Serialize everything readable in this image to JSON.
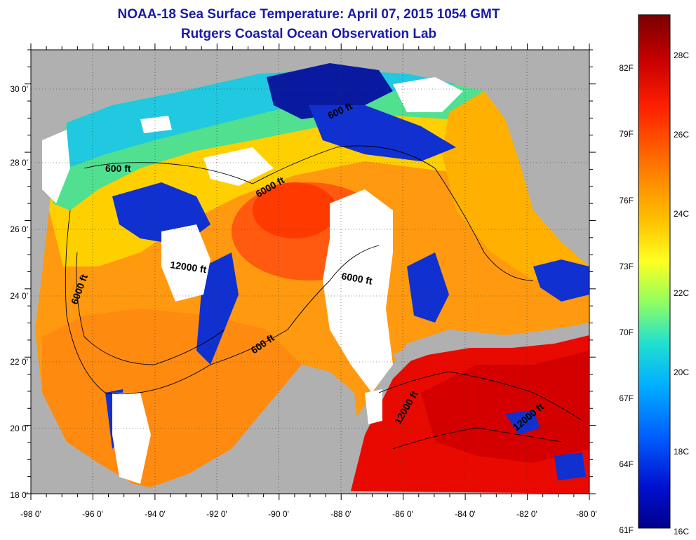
{
  "title": {
    "line1": "NOAA-18 Sea Surface Temperature:  April 07, 2015 1054 GMT",
    "line2": "Rutgers Coastal Ocean Observation Lab"
  },
  "map": {
    "region": "Gulf of Mexico",
    "lon_range": [
      -98,
      -80
    ],
    "lat_range": [
      18,
      31
    ],
    "x_tick_labels": [
      "-98 0'",
      "-96 0'",
      "-94 0'",
      "-92 0'",
      "-90 0'",
      "-88 0'",
      "-86 0'",
      "-84 0'",
      "-82 0'",
      "-80 0'"
    ],
    "y_tick_labels": [
      "18 0'",
      "20 0'",
      "22 0'",
      "24 0'",
      "26 0'",
      "28 0'",
      "30 0'"
    ],
    "grid": "dotted",
    "land_color": "#b0b0b0",
    "cloud_color": "#ffffff",
    "contour_labels": [
      {
        "text": "600 ft"
      },
      {
        "text": "600 ft"
      },
      {
        "text": "6000 ft"
      },
      {
        "text": "6000 ft"
      },
      {
        "text": "6000 ft"
      },
      {
        "text": "12000 ft"
      },
      {
        "text": "12000 ft"
      },
      {
        "text": "12000 ft"
      },
      {
        "text": "600 ft"
      }
    ]
  },
  "colorbar": {
    "fahrenheit_labels": [
      "82F",
      "79F",
      "76F",
      "73F",
      "70F",
      "67F",
      "64F",
      "61F"
    ],
    "celsius_labels": [
      "28C",
      "26C",
      "24C",
      "22C",
      "20C",
      "18C",
      "16C"
    ],
    "colors": [
      "#7a0000",
      "#c80000",
      "#ff2000",
      "#ff7a00",
      "#ffc000",
      "#ffff20",
      "#90ff60",
      "#20e0d0",
      "#00b0ff",
      "#0060ff",
      "#0010d0",
      "#00008a"
    ]
  }
}
